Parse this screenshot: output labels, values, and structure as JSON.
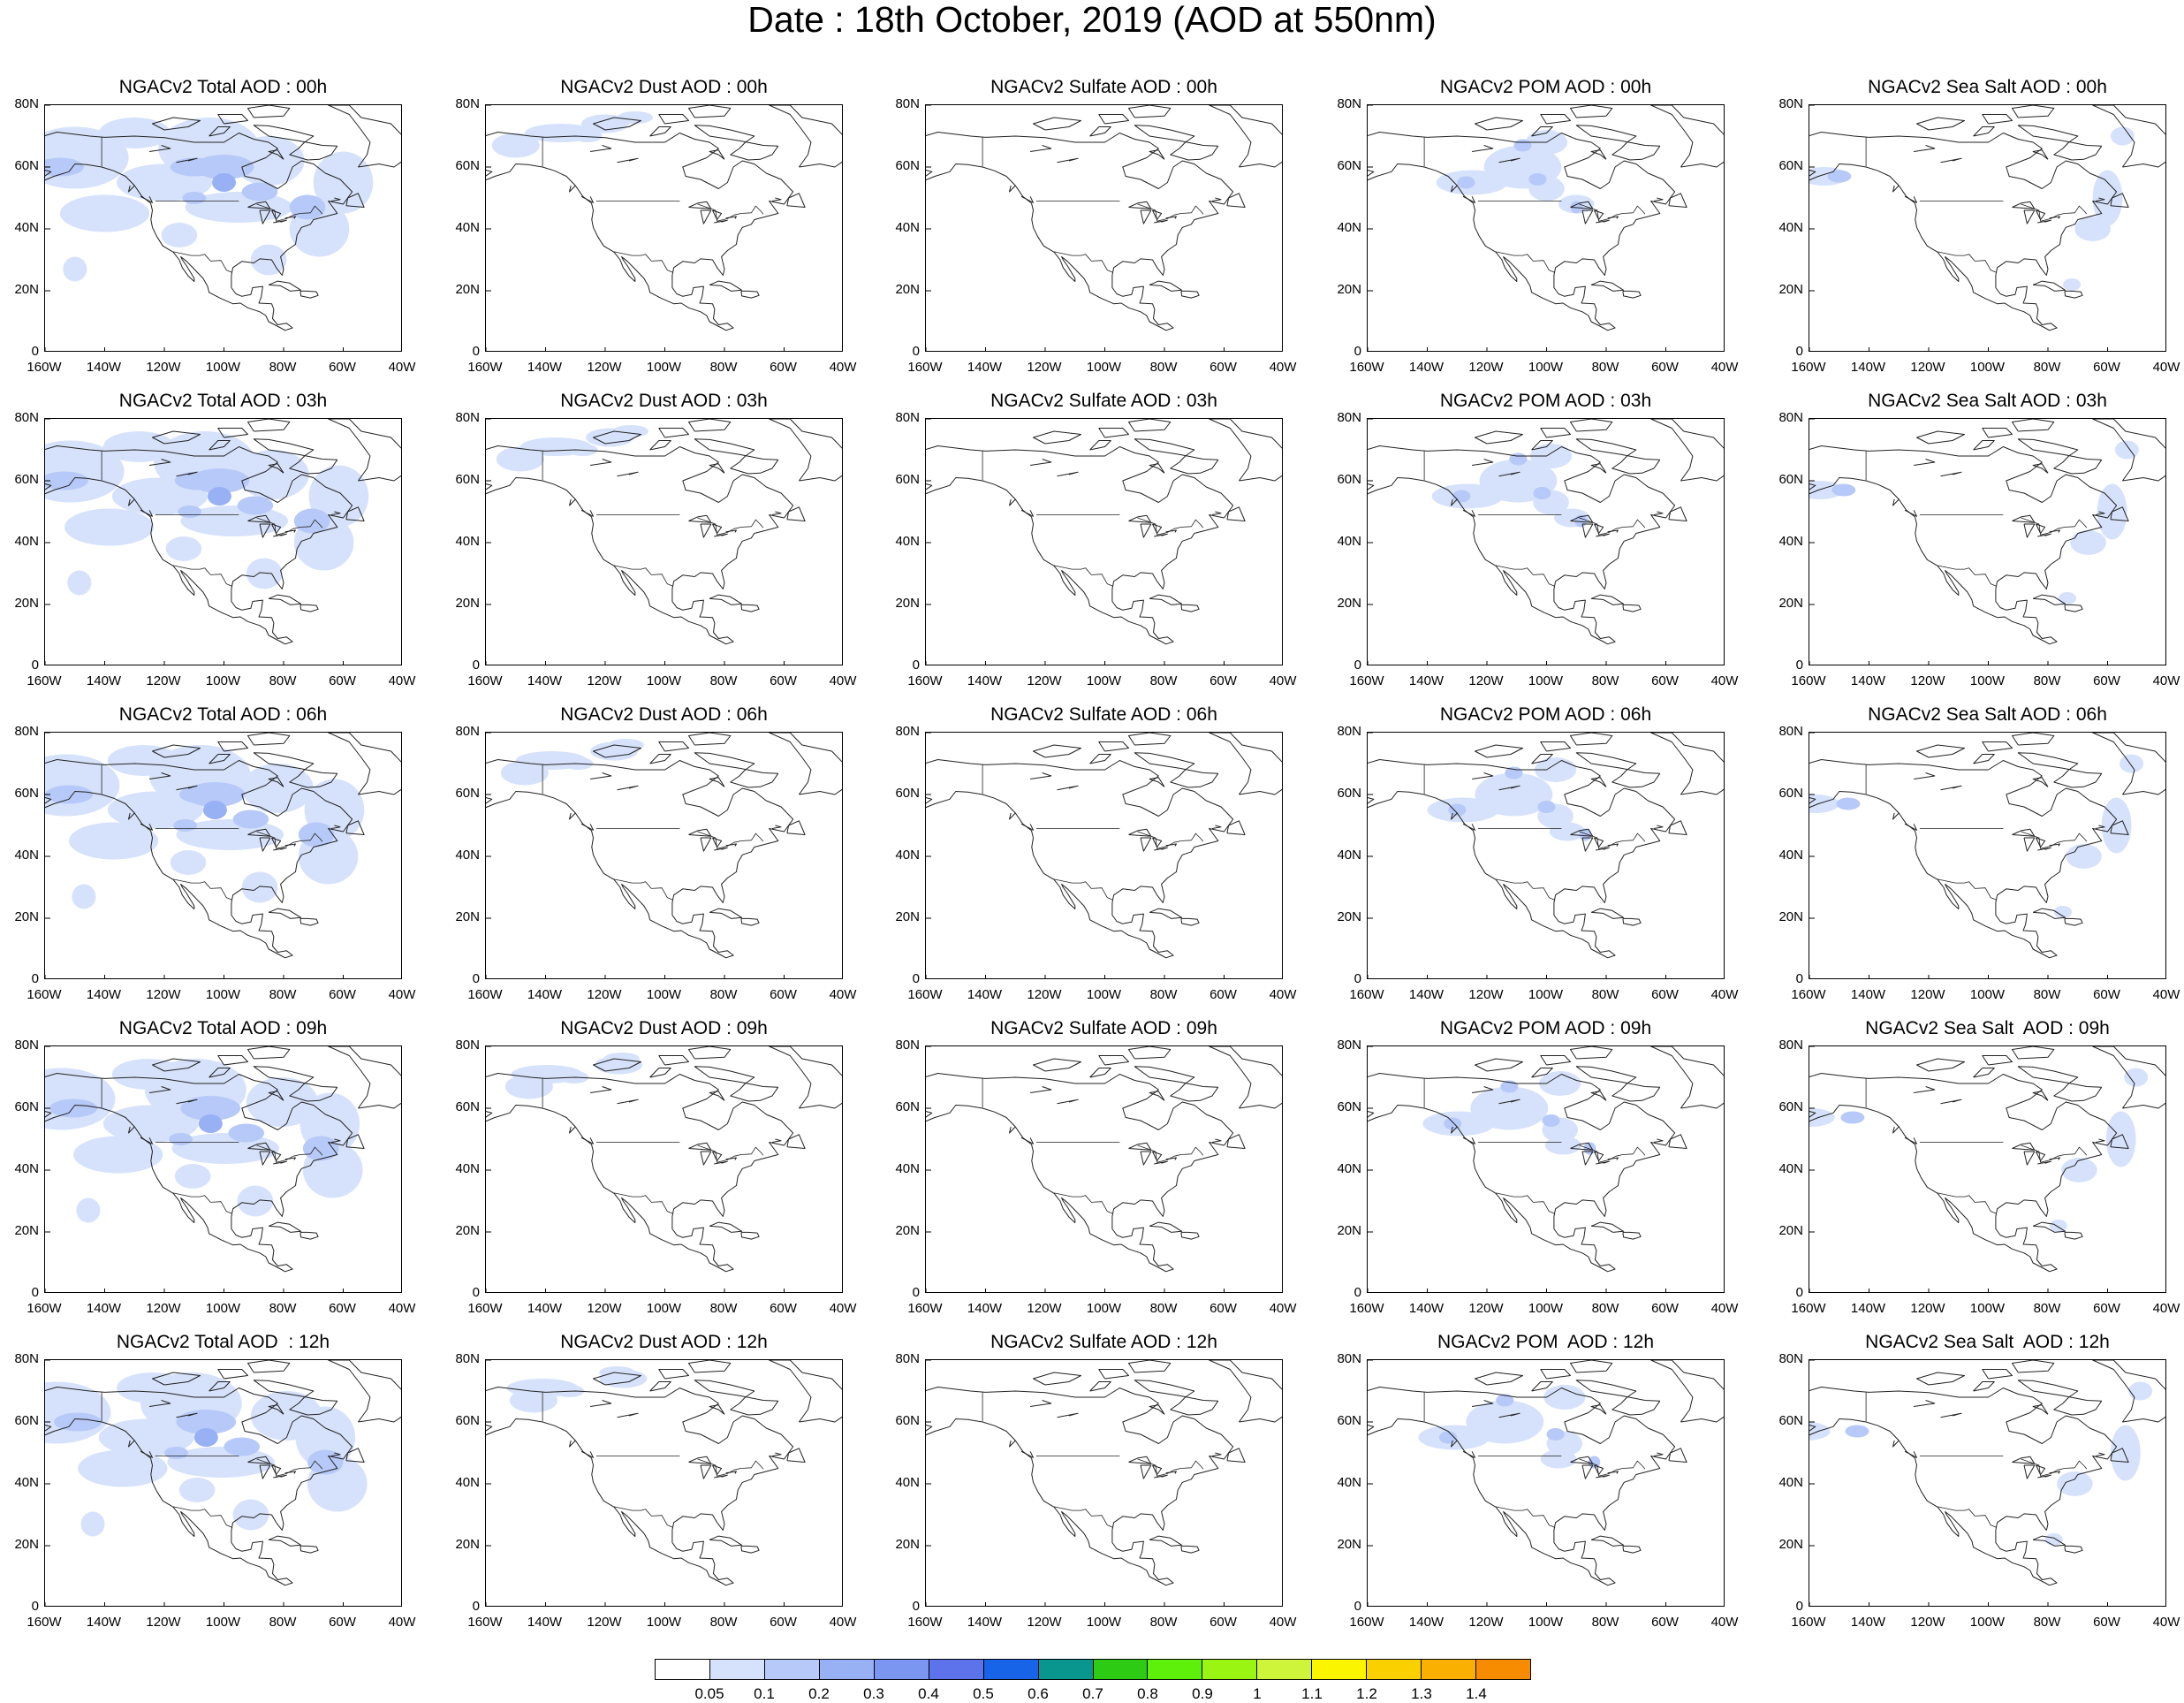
{
  "title": "Date : 18th October, 2019 (AOD at 550nm)",
  "map": {
    "lat_ticks": [
      "80N",
      "60N",
      "40N",
      "20N",
      "0"
    ],
    "lon_ticks": [
      "160W",
      "140W",
      "120W",
      "100W",
      "80W",
      "60W",
      "40W"
    ],
    "lat_range": [
      0,
      80
    ],
    "lon_range": [
      -160,
      -40
    ]
  },
  "panels": [
    {
      "title": "NGACv2 Total AOD : 00h",
      "species": "total",
      "hour": "00h"
    },
    {
      "title": "NGACv2 Dust AOD : 00h",
      "species": "dust",
      "hour": "00h"
    },
    {
      "title": "NGACv2 Sulfate AOD : 00h",
      "species": "sulfate",
      "hour": "00h"
    },
    {
      "title": "NGACv2 POM AOD : 00h",
      "species": "pom",
      "hour": "00h"
    },
    {
      "title": "NGACv2 Sea Salt AOD : 00h",
      "species": "seasalt",
      "hour": "00h"
    },
    {
      "title": "NGACv2 Total AOD : 03h",
      "species": "total",
      "hour": "03h"
    },
    {
      "title": "NGACv2 Dust AOD : 03h",
      "species": "dust",
      "hour": "03h"
    },
    {
      "title": "NGACv2 Sulfate AOD : 03h",
      "species": "sulfate",
      "hour": "03h"
    },
    {
      "title": "NGACv2 POM AOD : 03h",
      "species": "pom",
      "hour": "03h"
    },
    {
      "title": "NGACv2 Sea Salt AOD : 03h",
      "species": "seasalt",
      "hour": "03h"
    },
    {
      "title": "NGACv2 Total AOD : 06h",
      "species": "total",
      "hour": "06h"
    },
    {
      "title": "NGACv2 Dust AOD : 06h",
      "species": "dust",
      "hour": "06h"
    },
    {
      "title": "NGACv2 Sulfate AOD : 06h",
      "species": "sulfate",
      "hour": "06h"
    },
    {
      "title": "NGACv2 POM AOD : 06h",
      "species": "pom",
      "hour": "06h"
    },
    {
      "title": "NGACv2 Sea Salt AOD : 06h",
      "species": "seasalt",
      "hour": "06h"
    },
    {
      "title": "NGACv2 Total AOD : 09h",
      "species": "total",
      "hour": "09h"
    },
    {
      "title": "NGACv2 Dust AOD : 09h",
      "species": "dust",
      "hour": "09h"
    },
    {
      "title": "NGACv2 Sulfate AOD : 09h",
      "species": "sulfate",
      "hour": "09h"
    },
    {
      "title": "NGACv2 POM AOD : 09h",
      "species": "pom",
      "hour": "09h"
    },
    {
      "title": "NGACv2 Sea Salt  AOD : 09h",
      "species": "seasalt",
      "hour": "09h"
    },
    {
      "title": "NGACv2 Total AOD  : 12h",
      "species": "total",
      "hour": "12h"
    },
    {
      "title": "NGACv2 Dust AOD : 12h",
      "species": "dust",
      "hour": "12h"
    },
    {
      "title": "NGACv2 Sulfate AOD : 12h",
      "species": "sulfate",
      "hour": "12h"
    },
    {
      "title": "NGACv2 POM  AOD : 12h",
      "species": "pom",
      "hour": "12h"
    },
    {
      "title": "NGACv2 Sea Salt  AOD : 12h",
      "species": "seasalt",
      "hour": "12h"
    }
  ],
  "colorbar": {
    "labels": [
      "0.05",
      "0.1",
      "0.2",
      "0.3",
      "0.4",
      "0.5",
      "0.6",
      "0.7",
      "0.8",
      "0.9",
      "1",
      "1.1",
      "1.2",
      "1.3",
      "1.4"
    ],
    "colors": [
      "#ffffff",
      "#d6e2fb",
      "#b7c9f8",
      "#98b1f5",
      "#7b96f1",
      "#5c73ec",
      "#1764e8",
      "#08968f",
      "#2ecb15",
      "#5ef00b",
      "#9af513",
      "#cef53a",
      "#fbf500",
      "#fbd000",
      "#f9b000",
      "#f88c00",
      "#f86a00",
      "#f31f0a"
    ]
  }
}
